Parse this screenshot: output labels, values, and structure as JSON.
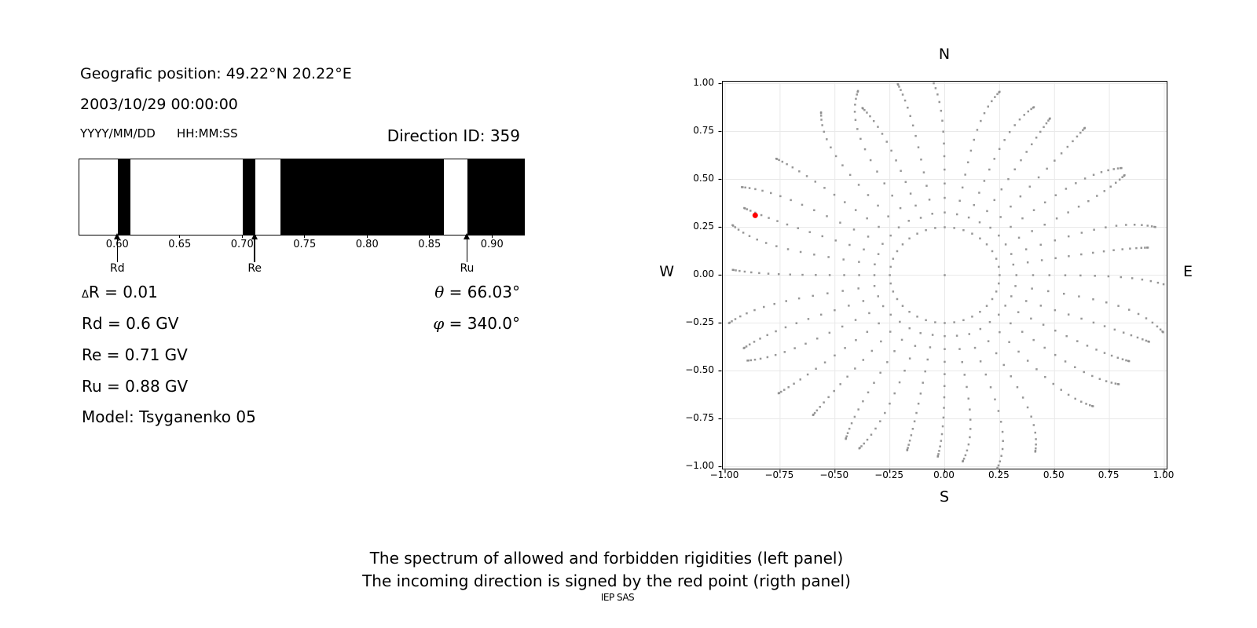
{
  "header": {
    "geo_position": "Geografic position: 49.22°N 20.22°E",
    "datetime": "2003/10/29 00:00:00",
    "date_format": "YYYY/MM/DD",
    "time_format": "HH:MM:SS",
    "direction_id": "Direction ID: 359"
  },
  "parameters": {
    "delta_symbol": "Δ",
    "delta_text": "R = 0.01",
    "rd": "Rd = 0.6 GV",
    "re": "Re = 0.71 GV",
    "ru": "Ru = 0.88 GV",
    "model": "Model: Tsyganenko 05",
    "theta_symbol": "θ",
    "theta_text": " = 66.03°",
    "phi_symbol": "φ",
    "phi_text": " = 340.0°"
  },
  "captions": {
    "line1": "The spectrum of allowed and forbidden rigidities (left panel)",
    "line2": "The incoming direction is signed by the red point (rigth panel)",
    "credit": "IEP SAS"
  },
  "chart_data": [
    {
      "type": "barcode",
      "panel": "left",
      "title": "Spectrum of allowed (white) and forbidden (black) rigidities",
      "x_range": [
        0.569,
        0.925
      ],
      "x_unit": "GV",
      "forbidden_intervals": [
        [
          0.6,
          0.61
        ],
        [
          0.7,
          0.71
        ],
        [
          0.73,
          0.861
        ],
        [
          0.88,
          0.925
        ]
      ],
      "allowed_intervals": [
        [
          0.569,
          0.6
        ],
        [
          0.61,
          0.7
        ],
        [
          0.71,
          0.73
        ],
        [
          0.861,
          0.88
        ]
      ],
      "ticks": [
        {
          "v": 0.6,
          "label": "0.60"
        },
        {
          "v": 0.65,
          "label": "0.65"
        },
        {
          "v": 0.7,
          "label": "0.70"
        },
        {
          "v": 0.75,
          "label": "0.75"
        },
        {
          "v": 0.8,
          "label": "0.80"
        },
        {
          "v": 0.85,
          "label": "0.85"
        },
        {
          "v": 0.9,
          "label": "0.90"
        }
      ],
      "markers": [
        {
          "label": "Rd",
          "v": 0.6
        },
        {
          "label": "Re",
          "v": 0.71
        },
        {
          "label": "Ru",
          "v": 0.88
        }
      ]
    },
    {
      "type": "scatter",
      "panel": "right",
      "compass": {
        "n": "N",
        "s": "S",
        "w": "W",
        "e": "E"
      },
      "xlim": [
        -1.01,
        1.01
      ],
      "ylim": [
        -1.01,
        1.01
      ],
      "grid": true,
      "xticks": [
        {
          "v": -1.0,
          "label": "−1.00"
        },
        {
          "v": -0.75,
          "label": "−0.75"
        },
        {
          "v": -0.5,
          "label": "−0.50"
        },
        {
          "v": -0.25,
          "label": "−0.25"
        },
        {
          "v": 0.0,
          "label": "0.00"
        },
        {
          "v": 0.25,
          "label": "0.25"
        },
        {
          "v": 0.5,
          "label": "0.50"
        },
        {
          "v": 0.75,
          "label": "0.75"
        },
        {
          "v": 1.0,
          "label": "1.00"
        }
      ],
      "yticks": [
        {
          "v": 1.0,
          "label": "1.00"
        },
        {
          "v": 0.75,
          "label": "0.75"
        },
        {
          "v": 0.5,
          "label": "0.50"
        },
        {
          "v": 0.25,
          "label": "0.25"
        },
        {
          "v": 0.0,
          "label": "0.00"
        },
        {
          "v": -0.25,
          "label": "−0.25"
        },
        {
          "v": -0.5,
          "label": "−0.50"
        },
        {
          "v": -0.75,
          "label": "−0.75"
        },
        {
          "v": -1.0,
          "label": "−1.00"
        }
      ],
      "dot_color": "#8c8c8c",
      "grid_color": "#e9e9e9",
      "center_point": {
        "x": 0,
        "y": 0
      },
      "red_point": {
        "x": -0.863,
        "y": 0.312,
        "color": "#ff0000"
      },
      "spokes": {
        "count": 36,
        "azimuth_step_deg": 10,
        "inner_radius": 0.25,
        "outer_radius_range": [
          0.93,
          1.04
        ],
        "dots_per_spoke": 17,
        "radial_profile": "r = r_in + (r_end - r_in) * sin(t * 90deg)"
      }
    }
  ]
}
